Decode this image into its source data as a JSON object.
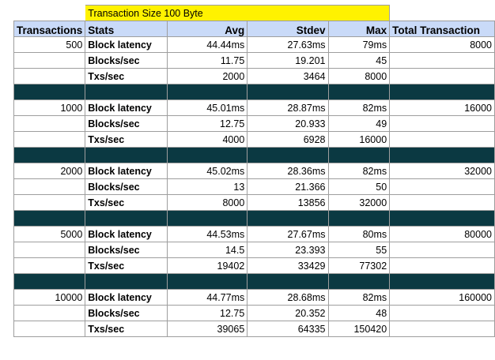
{
  "title": "Transaction Size 100 Byte",
  "headers": {
    "transactions": "Transactions",
    "stats": "Stats",
    "avg": "Avg",
    "stdev": "Stdev",
    "max": "Max",
    "total": "Total Transaction"
  },
  "groups": [
    {
      "transactions": "500",
      "total": "8000",
      "rows": [
        {
          "stat": "Block latency",
          "avg": "44.44ms",
          "stdev": "27.63ms",
          "max": "79ms"
        },
        {
          "stat": "Blocks/sec",
          "avg": "11.75",
          "stdev": "19.201",
          "max": "45"
        },
        {
          "stat": "Txs/sec",
          "avg": "2000",
          "stdev": "3464",
          "max": "8000"
        }
      ]
    },
    {
      "transactions": "1000",
      "total": "16000",
      "rows": [
        {
          "stat": "Block latency",
          "avg": "45.01ms",
          "stdev": "28.87ms",
          "max": "82ms"
        },
        {
          "stat": "Blocks/sec",
          "avg": "12.75",
          "stdev": "20.933",
          "max": "49"
        },
        {
          "stat": "Txs/sec",
          "avg": "4000",
          "stdev": "6928",
          "max": "16000"
        }
      ]
    },
    {
      "transactions": "2000",
      "total": "32000",
      "rows": [
        {
          "stat": "Block latency",
          "avg": "45.02ms",
          "stdev": "28.36ms",
          "max": "82ms"
        },
        {
          "stat": "Blocks/sec",
          "avg": "13",
          "stdev": "21.366",
          "max": "50"
        },
        {
          "stat": "Txs/sec",
          "avg": "8000",
          "stdev": "13856",
          "max": "32000"
        }
      ]
    },
    {
      "transactions": "5000",
      "total": "80000",
      "rows": [
        {
          "stat": "Block latency",
          "avg": "44.53ms",
          "stdev": "27.67ms",
          "max": "80ms"
        },
        {
          "stat": "Blocks/sec",
          "avg": "14.5",
          "stdev": "23.393",
          "max": "55"
        },
        {
          "stat": "Txs/sec",
          "avg": "19402",
          "stdev": "33429",
          "max": "77302"
        }
      ]
    },
    {
      "transactions": "10000",
      "total": "160000",
      "rows": [
        {
          "stat": "Block latency",
          "avg": "44.77ms",
          "stdev": "28.68ms",
          "max": "82ms"
        },
        {
          "stat": "Blocks/sec",
          "avg": "12.75",
          "stdev": "20.352",
          "max": "48"
        },
        {
          "stat": "Txs/sec",
          "avg": "39065",
          "stdev": "64335",
          "max": "150420"
        }
      ]
    }
  ],
  "colors": {
    "title_fill": "#fff200",
    "header_fill": "#c9daf8",
    "separator_fill": "#0b3942",
    "gridline": "#9e9e9e"
  }
}
